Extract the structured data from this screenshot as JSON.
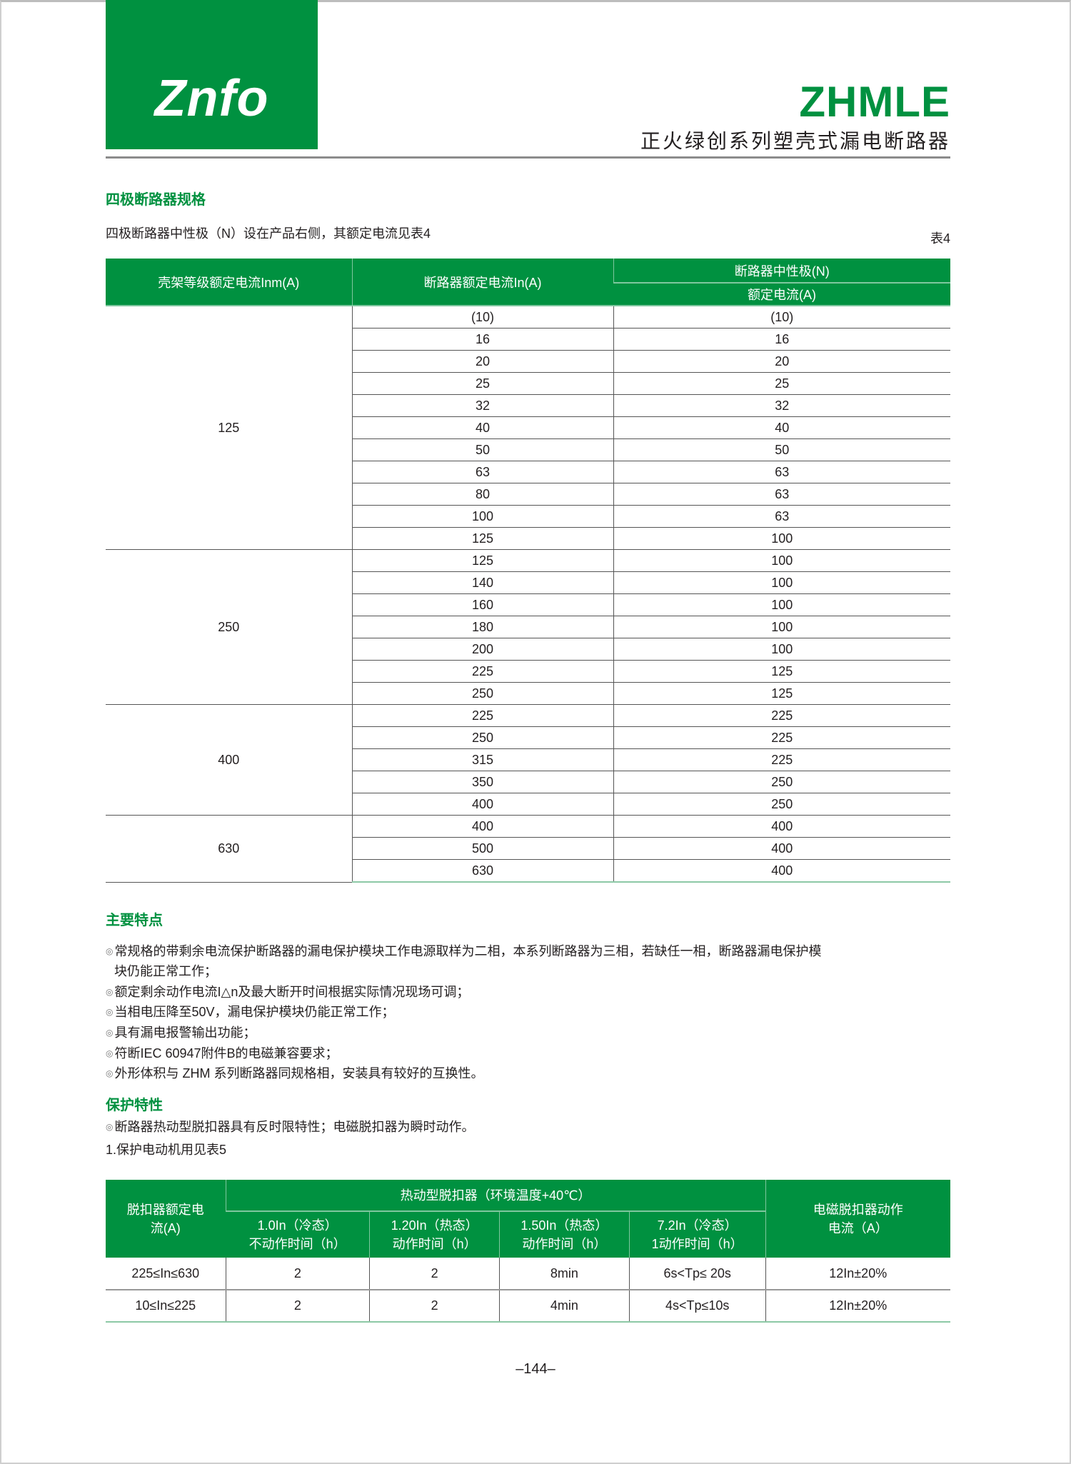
{
  "header": {
    "logo_text": "Znfo",
    "brand": "ZHMLE",
    "subtitle": "正火绿创系列塑壳式漏电断路器",
    "accent_color": "#009140"
  },
  "section1": {
    "title": "四极断路器规格",
    "intro": "四极断路器中性极（N）设在产品右侧，其额定电流见表4",
    "table_no": "表4",
    "table": {
      "col1": "壳架等级额定电流Inm(A)",
      "col2": "断路器额定电流In(A)",
      "col3_top": "断路器中性极(N)",
      "col3_bottom": "额定电流(A)",
      "groups": [
        {
          "inm": "125",
          "rows": [
            [
              "(10)",
              "(10)"
            ],
            [
              "16",
              "16"
            ],
            [
              "20",
              "20"
            ],
            [
              "25",
              "25"
            ],
            [
              "32",
              "32"
            ],
            [
              "40",
              "40"
            ],
            [
              "50",
              "50"
            ],
            [
              "63",
              "63"
            ],
            [
              "80",
              "63"
            ],
            [
              "100",
              "63"
            ],
            [
              "125",
              "100"
            ]
          ]
        },
        {
          "inm": "250",
          "rows": [
            [
              "125",
              "100"
            ],
            [
              "140",
              "100"
            ],
            [
              "160",
              "100"
            ],
            [
              "180",
              "100"
            ],
            [
              "200",
              "100"
            ],
            [
              "225",
              "125"
            ],
            [
              "250",
              "125"
            ]
          ]
        },
        {
          "inm": "400",
          "rows": [
            [
              "225",
              "225"
            ],
            [
              "250",
              "225"
            ],
            [
              "315",
              "225"
            ],
            [
              "350",
              "250"
            ],
            [
              "400",
              "250"
            ]
          ]
        },
        {
          "inm": "630",
          "rows": [
            [
              "400",
              "400"
            ],
            [
              "500",
              "400"
            ],
            [
              "630",
              "400"
            ]
          ]
        }
      ]
    }
  },
  "features": {
    "title": "主要特点",
    "bullet": "◎",
    "items": [
      "常规格的带剩余电流保护断路器的漏电保护模块工作电源取样为二相，本系列断路器为三相，若缺任一相，断路器漏电保护模",
      "块仍能正常工作；",
      "额定剩余动作电流I△n及最大断开时间根据实际情况现场可调；",
      "当相电压降至50V，漏电保护模块仍能正常工作；",
      "具有漏电报警输出功能；",
      "符断IEC 60947附件B的电磁兼容要求；",
      "外形体积与 ZHM 系列断路器同规格相，安装具有较好的互换性。"
    ]
  },
  "protection": {
    "title": "保护特性",
    "line1": "断路器热动型脱扣器具有反时限特性；电磁脱扣器为瞬时动作。",
    "line2": "1.保护电动机用见表5",
    "table": {
      "h_rated": "脱扣器额定电流(A)",
      "h_thermal": "热动型脱扣器（环境温度+40℃）",
      "h_sub": [
        [
          "1.0In（冷态）",
          "不动作时间（h）"
        ],
        [
          "1.20In（热态）",
          "动作时间（h）"
        ],
        [
          "1.50In（热态）",
          "动作时间（h）"
        ],
        [
          "7.2In（冷态）",
          "1动作时间（h）"
        ]
      ],
      "h_mag": "电磁脱扣器动作电流（A）",
      "rows": [
        [
          "225≤In≤630",
          "2",
          "2",
          "8min",
          "6s<Tp≤ 20s",
          "12In±20%"
        ],
        [
          "10≤In≤225",
          "2",
          "2",
          "4min",
          "4s<Tp≤10s",
          "12In±20%"
        ]
      ]
    }
  },
  "page_number": "–144–"
}
